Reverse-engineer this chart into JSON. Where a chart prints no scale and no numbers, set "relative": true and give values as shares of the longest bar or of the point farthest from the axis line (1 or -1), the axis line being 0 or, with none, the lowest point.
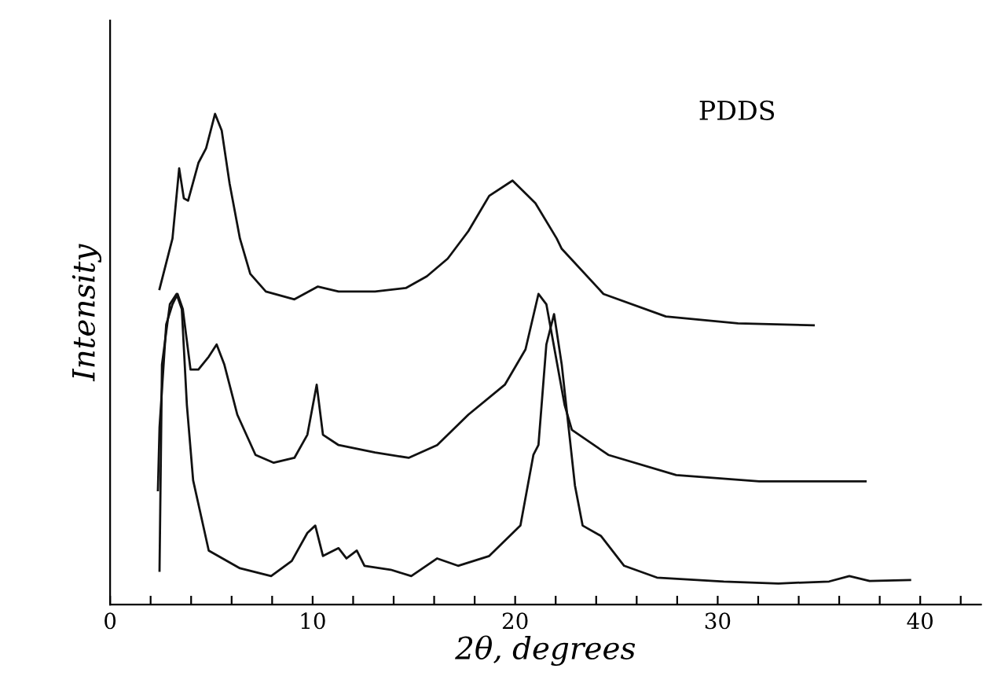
{
  "chart_data": {
    "type": "line",
    "relative": true,
    "xlabel": "2θ, degrees",
    "ylabel": "Intensity",
    "annotations": [
      "PDDS"
    ],
    "xlim": [
      0,
      43
    ],
    "xticks": [
      0,
      {
        "value": 2,
        "label": null
      },
      {
        "value": 4,
        "label": null
      },
      {
        "value": 6,
        "label": null
      },
      {
        "value": 8,
        "label": null
      },
      10,
      {
        "value": 12,
        "label": null
      },
      {
        "value": 14,
        "label": null
      },
      {
        "value": 16,
        "label": null
      },
      {
        "value": 18,
        "label": null
      },
      20,
      {
        "value": 22,
        "label": null
      },
      {
        "value": 24,
        "label": null
      },
      {
        "value": 26,
        "label": null
      },
      {
        "value": 28,
        "label": null
      },
      30,
      {
        "value": 32,
        "label": null
      },
      {
        "value": 34,
        "label": null
      },
      {
        "value": 36,
        "label": null
      },
      {
        "value": 38,
        "label": null
      },
      40,
      {
        "value": 42,
        "label": null
      }
    ],
    "tick_labels": "x",
    "grid": false,
    "marker": "none",
    "line_style": "solid",
    "series": [
      {
        "color": "#111111",
        "x": [
          2.44,
          3.08,
          3.41,
          3.64,
          3.85,
          4.36,
          4.74,
          5.18,
          5.51,
          5.9,
          6.41,
          6.92,
          7.69,
          9.1,
          10.26,
          11.28,
          13.08,
          14.6,
          15.64,
          16.67,
          17.69,
          18.72,
          19.87,
          21.0,
          22.05,
          22.3,
          24.36,
          27.44,
          31.0,
          34.74
        ],
        "values": [
          0.643,
          0.746,
          0.889,
          0.828,
          0.823,
          0.9,
          0.93,
          1.0,
          0.966,
          0.858,
          0.746,
          0.674,
          0.638,
          0.622,
          0.648,
          0.638,
          0.638,
          0.645,
          0.669,
          0.705,
          0.761,
          0.833,
          0.864,
          0.818,
          0.746,
          0.725,
          0.633,
          0.587,
          0.573,
          0.569
        ]
      },
      {
        "color": "#111111",
        "x": [
          2.36,
          2.44,
          2.77,
          3.08,
          3.33,
          3.59,
          3.97,
          4.36,
          4.87,
          5.26,
          5.64,
          6.28,
          7.18,
          8.08,
          9.1,
          9.74,
          10.2,
          10.51,
          11.28,
          13.08,
          14.74,
          16.15,
          17.69,
          19.49,
          20.51,
          21.15,
          21.54,
          22.44,
          22.8,
          24.6,
          27.95,
          32.05,
          37.3
        ],
        "values": [
          0.233,
          0.361,
          0.571,
          0.612,
          0.633,
          0.602,
          0.479,
          0.479,
          0.505,
          0.53,
          0.489,
          0.387,
          0.305,
          0.289,
          0.299,
          0.346,
          0.448,
          0.346,
          0.325,
          0.31,
          0.299,
          0.325,
          0.387,
          0.448,
          0.52,
          0.633,
          0.612,
          0.407,
          0.356,
          0.305,
          0.264,
          0.251,
          0.251
        ]
      },
      {
        "color": "#111111",
        "x": [
          2.44,
          2.56,
          2.95,
          3.28,
          3.54,
          3.79,
          4.1,
          4.87,
          6.41,
          7.95,
          8.97,
          9.74,
          10.13,
          10.51,
          11.28,
          11.67,
          12.18,
          12.56,
          13.85,
          14.87,
          16.15,
          17.18,
          18.72,
          20.26,
          20.9,
          21.15,
          21.54,
          21.92,
          22.3,
          22.95,
          23.33,
          24.23,
          25.38,
          27.0,
          30.3,
          33.0,
          35.5,
          36.5,
          37.5,
          39.5
        ],
        "values": [
          0.069,
          0.489,
          0.612,
          0.633,
          0.602,
          0.407,
          0.253,
          0.11,
          0.074,
          0.058,
          0.089,
          0.146,
          0.161,
          0.099,
          0.115,
          0.094,
          0.11,
          0.079,
          0.071,
          0.058,
          0.094,
          0.079,
          0.099,
          0.161,
          0.305,
          0.325,
          0.53,
          0.592,
          0.489,
          0.243,
          0.161,
          0.14,
          0.079,
          0.055,
          0.047,
          0.043,
          0.047,
          0.058,
          0.048,
          0.05
        ]
      }
    ]
  }
}
